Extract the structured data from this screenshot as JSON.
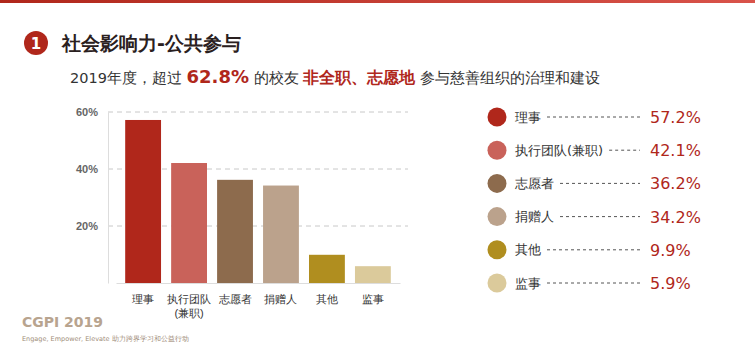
{
  "header": {
    "number": "1"
  },
  "chart_data": {
    "type": "bar",
    "title": "社会影响力-公共参与",
    "subtitle_parts": [
      "2019年度，超过 ",
      "62.8%",
      " 的校友 ",
      "非全职、志愿地",
      " 参与慈善组织的治理和建设"
    ],
    "categories": [
      "理事",
      "执行团队(兼职)",
      "志愿者",
      "捐赠人",
      "其他",
      "监事"
    ],
    "values": [
      57.2,
      42.1,
      36.2,
      34.2,
      9.9,
      5.9
    ],
    "value_labels": [
      "57.2%",
      "42.1%",
      "36.2%",
      "34.2%",
      "9.9%",
      "5.9%"
    ],
    "colors": [
      "#b0271b",
      "#c9625a",
      "#8d6b4d",
      "#bba28c",
      "#b08e1f",
      "#dbca9b"
    ],
    "ylim": [
      0,
      60
    ],
    "yticks": [
      {
        "value": 20,
        "label": "20%"
      },
      {
        "value": 40,
        "label": "40%"
      },
      {
        "value": 60,
        "label": "60%"
      }
    ],
    "grid": true,
    "legend": "right"
  },
  "footer": {
    "brand": "CGPI 2019",
    "tagline": "Engage, Empower, Elevate 助力跨界学习和公益行动"
  }
}
